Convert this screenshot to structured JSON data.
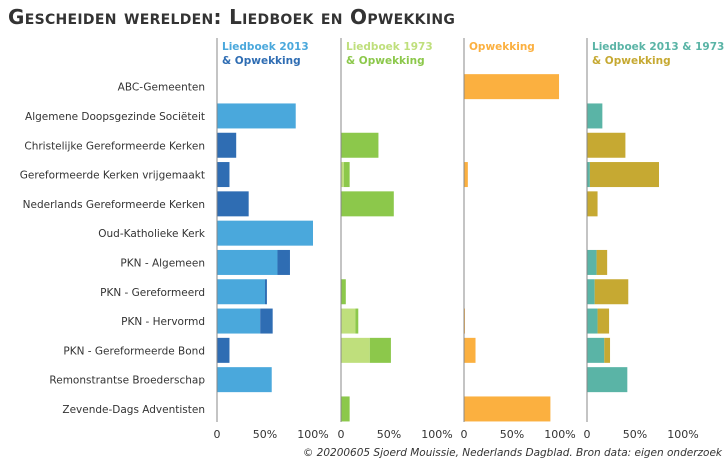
{
  "title": "Gescheiden werelden: Liedboek en Opwekking",
  "credit": "© 20200605 Sjoerd Mouissie, Nederlands Dagblad. Bron data: eigen onderzoek",
  "colors": {
    "lb2013": "#4aa8dc",
    "lb2013_opw": "#2f6db3",
    "lb1973": "#bfdf7c",
    "lb1973_opw": "#8cc84b",
    "opw": "#fbb040",
    "both": "#5ab4a6",
    "both_opw": "#c6a932",
    "axis": "#888888",
    "gridline": "#bdbdbd"
  },
  "chart_data": {
    "type": "bar",
    "orientation": "horizontal",
    "stacked": true,
    "grid": false,
    "categories": [
      "ABC-Gemeenten",
      "Algemene Doopsgezinde Sociëteit",
      "Christelijke Gereformeerde Kerken",
      "Gereformeerde Kerken vrijgemaakt",
      "Nederlands Gereformeerde Kerken",
      "Oud-Katholieke Kerk",
      "PKN - Algemeen",
      "PKN - Gereformeerd",
      "PKN - Hervormd",
      "PKN - Gereformeerde Bond",
      "Remonstrantse Broederschap",
      "Zevende-Dags Adventisten"
    ],
    "panels": [
      {
        "header": [
          "Liedboek 2013",
          "& Opwekking"
        ],
        "header_colors": [
          "lb2013",
          "lb2013_opw"
        ],
        "xlim": [
          0,
          100
        ],
        "xticks": [
          "0",
          "50%",
          "100%"
        ],
        "series": [
          {
            "color": "lb2013",
            "values": [
              0,
              82,
              0,
              0,
              0,
              100,
              63,
              50,
              45,
              0,
              57,
              0
            ]
          },
          {
            "color": "lb2013_opw",
            "values": [
              0,
              0,
              20,
              13,
              33,
              0,
              13,
              2,
              13,
              13,
              0,
              0
            ]
          }
        ]
      },
      {
        "header": [
          "Liedboek 1973",
          "& Opwekking"
        ],
        "header_colors": [
          "lb1973",
          "lb1973_opw"
        ],
        "xlim": [
          0,
          100
        ],
        "xticks": [
          "0",
          "50%",
          "100%"
        ],
        "series": [
          {
            "color": "lb1973",
            "values": [
              0,
              0,
              0,
              3,
              0,
              0,
              0,
              0,
              15,
              30,
              0,
              0
            ]
          },
          {
            "color": "lb1973_opw",
            "values": [
              0,
              0,
              39,
              6,
              55,
              0,
              0,
              5,
              3,
              22,
              0,
              9
            ]
          }
        ]
      },
      {
        "header": [
          "Opwekking"
        ],
        "header_colors": [
          "opw"
        ],
        "xlim": [
          0,
          100
        ],
        "xticks": [
          "0",
          "50%",
          "100%"
        ],
        "series": [
          {
            "color": "opw",
            "values": [
              99,
              0,
              0,
              4,
              0,
              0,
              0,
              0,
              1,
              12,
              0,
              90
            ]
          }
        ]
      },
      {
        "header": [
          "Liedboek 2013 & 1973",
          "& Opwekking"
        ],
        "header_colors": [
          "both",
          "both_opw"
        ],
        "xlim": [
          0,
          100
        ],
        "xticks": [
          "0",
          "50%",
          "100%"
        ],
        "series": [
          {
            "color": "both",
            "values": [
              0,
              16,
              0,
              3,
              0,
              0,
              10,
              8,
              11,
              18,
              42,
              0
            ]
          },
          {
            "color": "both_opw",
            "values": [
              0,
              0,
              40,
              72,
              11,
              0,
              11,
              35,
              12,
              6,
              0,
              0
            ]
          }
        ]
      }
    ]
  }
}
